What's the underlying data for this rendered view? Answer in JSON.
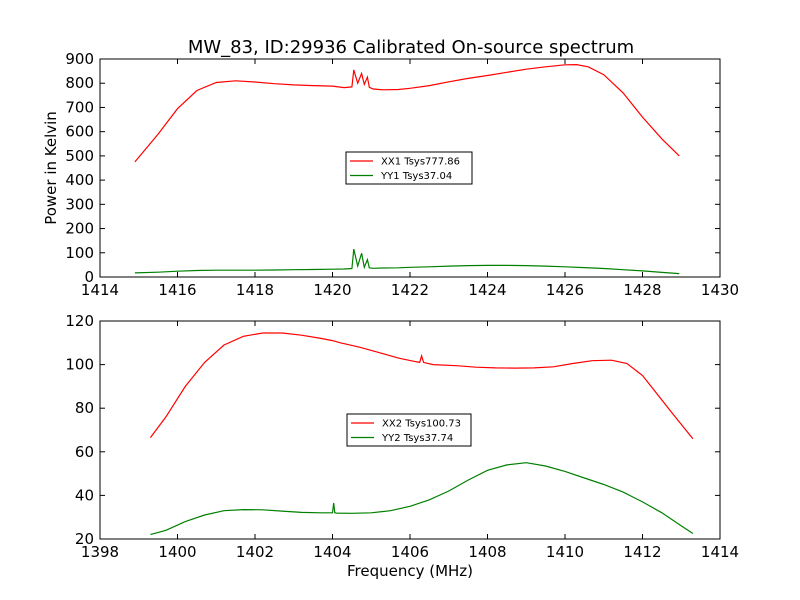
{
  "chart_data": [
    {
      "type": "line",
      "title": "MW_83, ID:29936 Calibrated On-source spectrum",
      "xlabel": "",
      "ylabel": "Power in Kelvin",
      "xlim": [
        1414,
        1430
      ],
      "ylim": [
        0,
        900
      ],
      "xticks": [
        1414,
        1416,
        1418,
        1420,
        1422,
        1424,
        1426,
        1428,
        1430
      ],
      "yticks": [
        0,
        100,
        200,
        300,
        400,
        500,
        600,
        700,
        800,
        900
      ],
      "legend_position": "center",
      "series": [
        {
          "name": "XX1 Tsys777.86",
          "color": "#ff0000",
          "x": [
            1414.9,
            1415.5,
            1416.0,
            1416.5,
            1417.0,
            1417.5,
            1418.0,
            1418.5,
            1419.0,
            1419.5,
            1420.0,
            1420.3,
            1420.5,
            1420.55,
            1420.65,
            1420.75,
            1420.82,
            1420.9,
            1420.95,
            1421.05,
            1421.3,
            1421.7,
            1422.0,
            1422.5,
            1423.0,
            1423.5,
            1424.0,
            1424.5,
            1425.0,
            1425.5,
            1426.0,
            1426.3,
            1426.6,
            1427.0,
            1427.5,
            1428.0,
            1428.5,
            1428.95
          ],
          "y": [
            475,
            590,
            695,
            770,
            803,
            810,
            805,
            798,
            793,
            790,
            788,
            782,
            785,
            855,
            800,
            840,
            795,
            825,
            783,
            776,
            773,
            774,
            779,
            790,
            806,
            820,
            832,
            845,
            858,
            868,
            876,
            877,
            868,
            835,
            760,
            660,
            570,
            500
          ]
        },
        {
          "name": "YY1 Tsys37.04",
          "color": "#008000",
          "x": [
            1414.9,
            1415.5,
            1416.0,
            1416.5,
            1417.0,
            1417.5,
            1418.0,
            1418.5,
            1419.0,
            1419.5,
            1420.0,
            1420.3,
            1420.5,
            1420.55,
            1420.65,
            1420.75,
            1420.82,
            1420.9,
            1420.95,
            1421.05,
            1421.3,
            1421.7,
            1422.0,
            1422.5,
            1423.0,
            1423.5,
            1424.0,
            1424.5,
            1425.0,
            1425.5,
            1426.0,
            1426.5,
            1427.0,
            1427.5,
            1428.0,
            1428.5,
            1428.95
          ],
          "y": [
            17,
            20,
            24,
            27,
            28,
            28,
            28,
            29,
            30,
            31,
            32,
            33,
            35,
            115,
            45,
            98,
            40,
            72,
            38,
            36,
            37,
            38,
            40,
            42,
            45,
            47,
            48,
            48,
            47,
            45,
            42,
            39,
            35,
            30,
            25,
            19,
            14
          ]
        }
      ]
    },
    {
      "type": "line",
      "title": "",
      "xlabel": "Frequency (MHz)",
      "ylabel": "",
      "xlim": [
        1398,
        1414
      ],
      "ylim": [
        20,
        120
      ],
      "xticks": [
        1398,
        1400,
        1402,
        1404,
        1406,
        1408,
        1410,
        1412,
        1414
      ],
      "yticks": [
        20,
        40,
        60,
        80,
        100,
        120
      ],
      "legend_position": "center",
      "series": [
        {
          "name": "XX2 Tsys100.73",
          "color": "#ff0000",
          "x": [
            1399.3,
            1399.7,
            1400.2,
            1400.7,
            1401.2,
            1401.7,
            1402.2,
            1402.7,
            1403.2,
            1403.7,
            1404.0,
            1404.2,
            1404.7,
            1405.2,
            1405.7,
            1406.1,
            1406.25,
            1406.3,
            1406.35,
            1406.6,
            1407.2,
            1407.7,
            1408.2,
            1408.7,
            1409.2,
            1409.7,
            1410.2,
            1410.7,
            1411.2,
            1411.6,
            1412.0,
            1412.4,
            1412.8,
            1413.3
          ],
          "y": [
            66.5,
            76,
            90,
            101,
            109,
            113,
            114.5,
            114.5,
            113.5,
            112,
            111,
            110,
            108,
            105.5,
            103,
            101.5,
            101,
            104,
            101,
            100,
            99.5,
            98.8,
            98.5,
            98.4,
            98.5,
            99,
            100.5,
            101.8,
            102,
            100.5,
            95,
            86,
            77,
            66
          ]
        },
        {
          "name": "YY2 Tsys37.74",
          "color": "#008000",
          "x": [
            1399.3,
            1399.7,
            1400.2,
            1400.7,
            1401.2,
            1401.7,
            1402.2,
            1402.7,
            1403.2,
            1403.7,
            1404.0,
            1404.03,
            1404.06,
            1404.1,
            1404.5,
            1405.0,
            1405.5,
            1406.0,
            1406.5,
            1407.0,
            1407.5,
            1408.0,
            1408.5,
            1409.0,
            1409.5,
            1410.0,
            1410.5,
            1411.0,
            1411.5,
            1412.0,
            1412.5,
            1413.0,
            1413.3
          ],
          "y": [
            22,
            24,
            28,
            31,
            33,
            33.5,
            33.4,
            32.8,
            32.2,
            32.0,
            32.0,
            36.5,
            32.0,
            31.9,
            31.8,
            32.0,
            33,
            35,
            38,
            42,
            47,
            51.5,
            54,
            55,
            53.5,
            51,
            48,
            45,
            41.5,
            37,
            32,
            26,
            22.5
          ]
        }
      ]
    }
  ]
}
